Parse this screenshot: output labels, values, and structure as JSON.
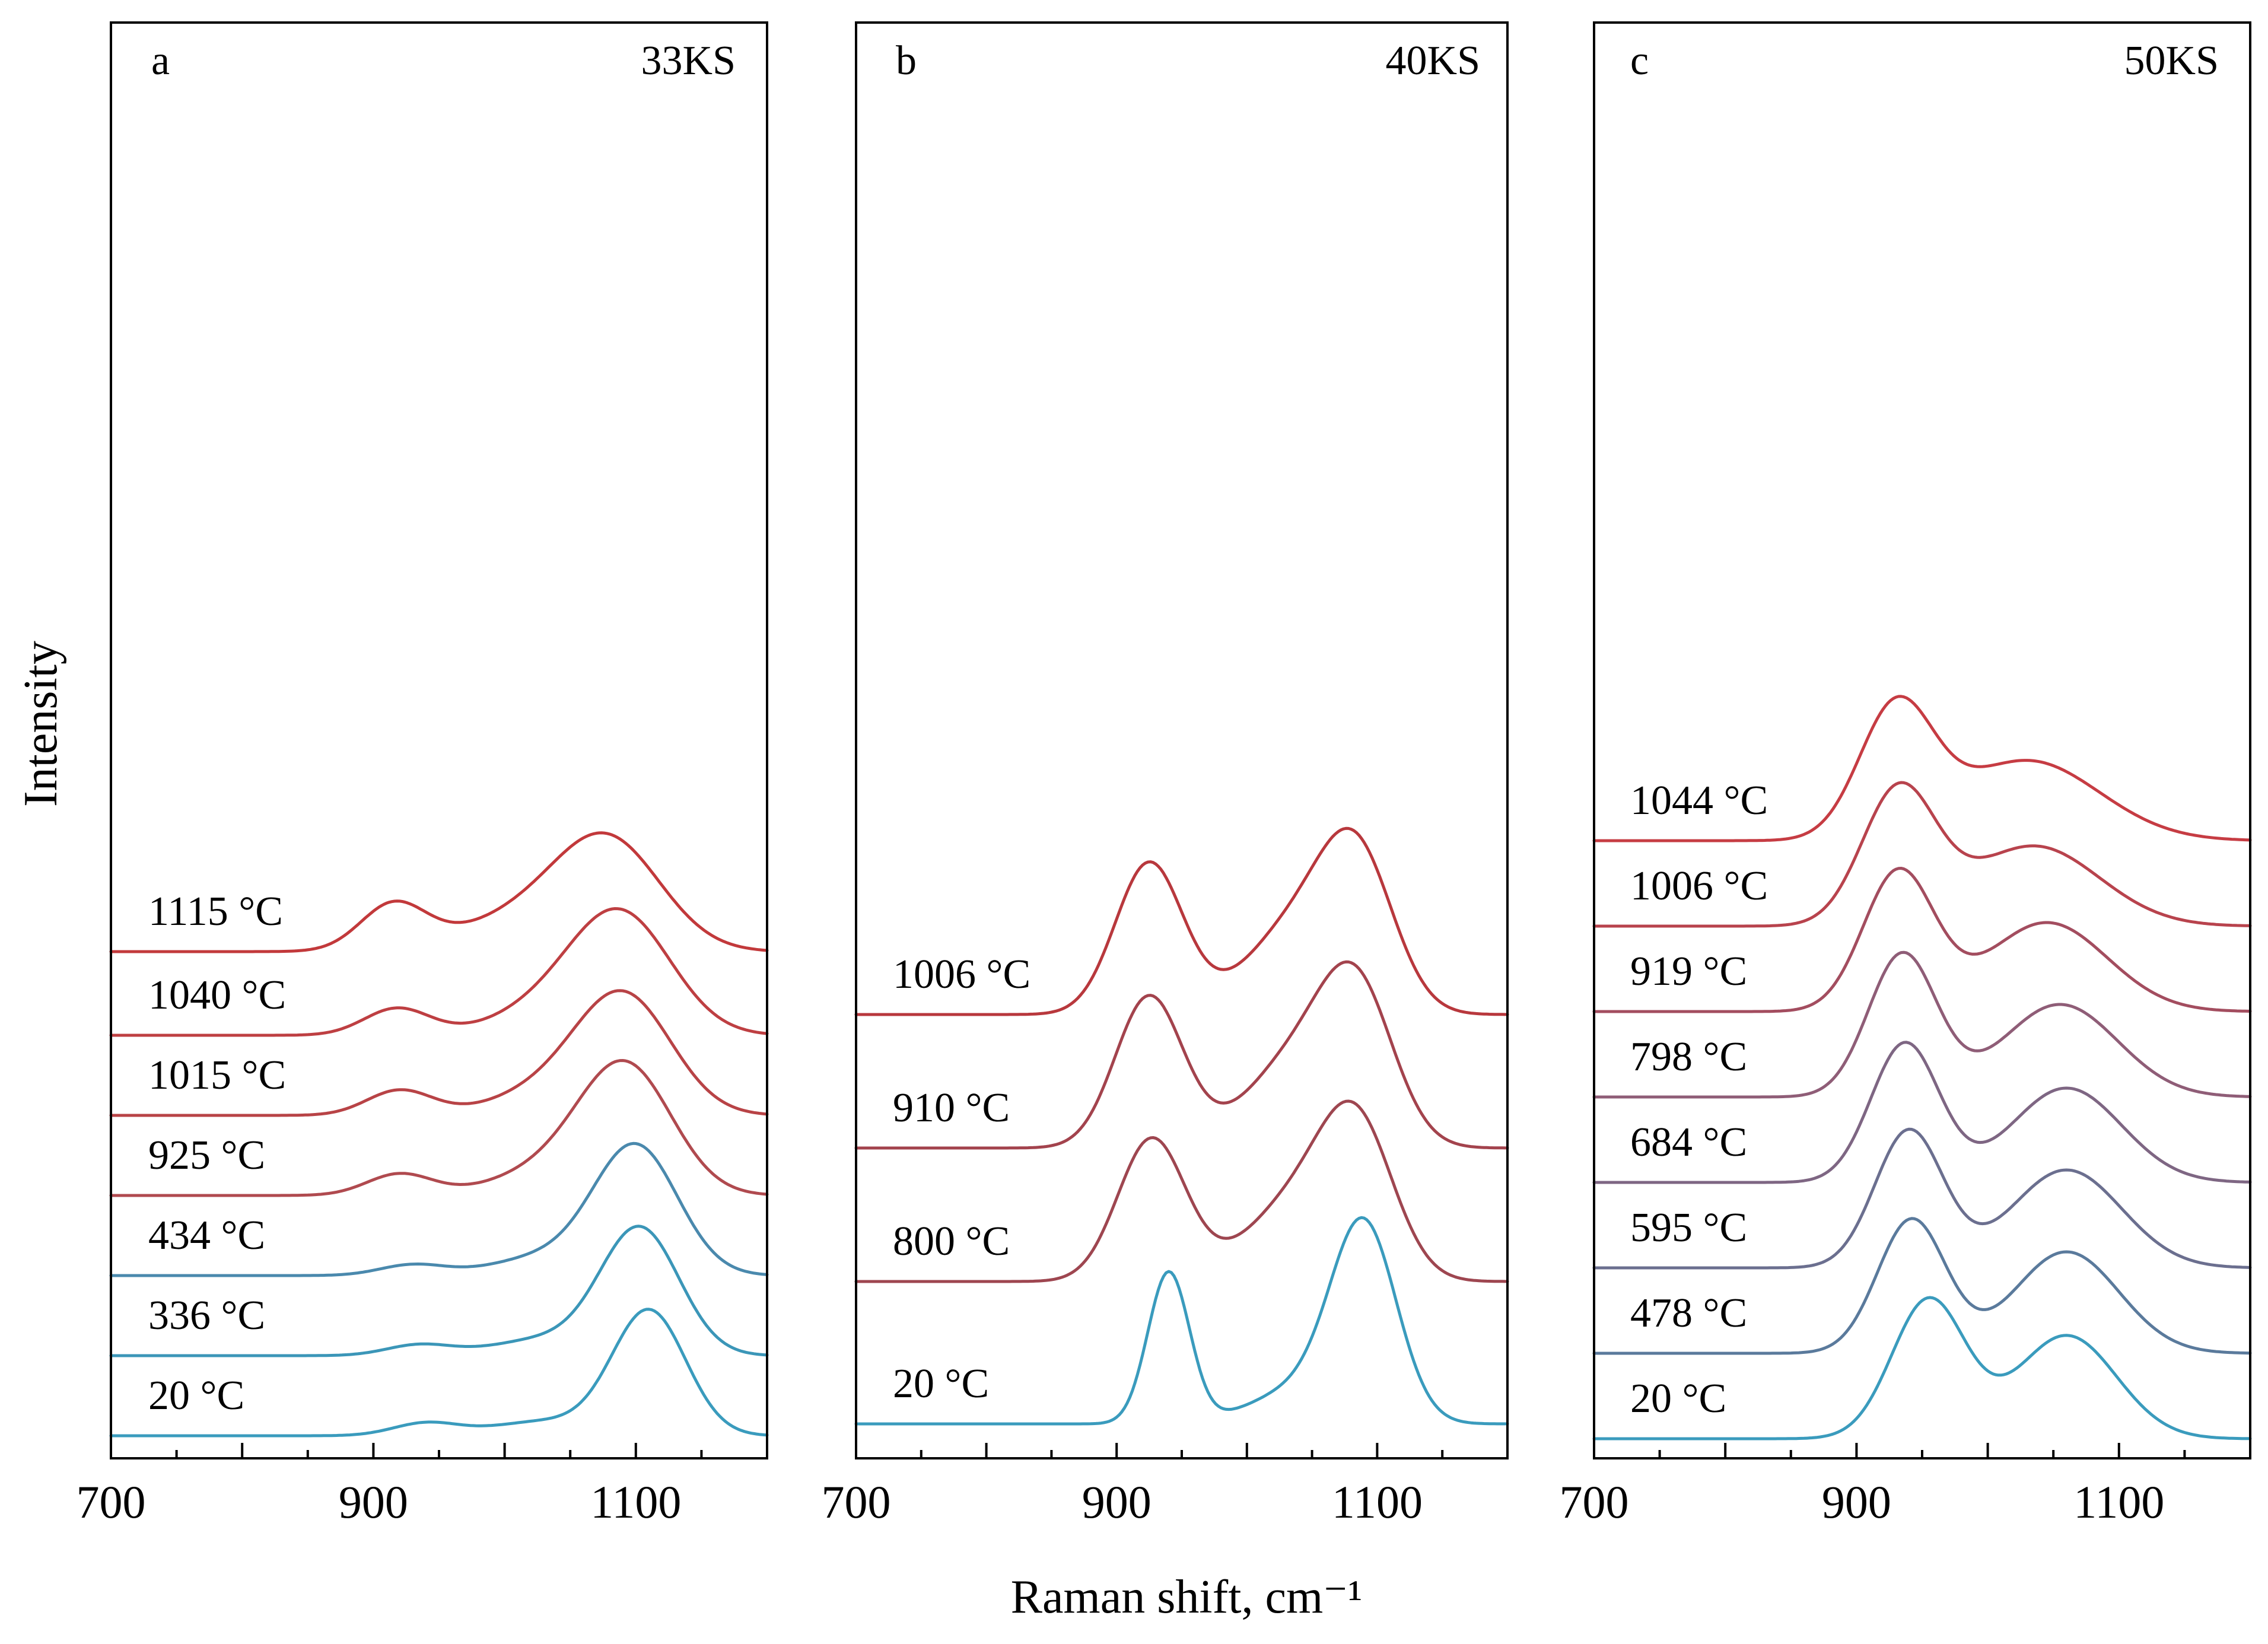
{
  "chart_data": {
    "type": "line",
    "xlabel": "Raman shift, cm⁻¹",
    "ylabel": "Intensity",
    "xlim": [
      700,
      1200
    ],
    "xticks": [
      700,
      900,
      1100
    ],
    "panels": [
      {
        "letter": "a",
        "sample": "33KS",
        "series": [
          {
            "label": "20 °C",
            "offset": 0,
            "color": "#3a9bbd",
            "peaks": [
              {
                "center": 940,
                "height": 0.07,
                "width": 25
              },
              {
                "center": 1030,
                "height": 0.08,
                "width": 40
              },
              {
                "center": 1110,
                "height": 0.7,
                "width": 28
              }
            ]
          },
          {
            "label": "336 °C",
            "offset": 0.45,
            "color": "#3b96b8",
            "peaks": [
              {
                "center": 935,
                "height": 0.06,
                "width": 25
              },
              {
                "center": 1030,
                "height": 0.09,
                "width": 40
              },
              {
                "center": 1103,
                "height": 0.71,
                "width": 30
              }
            ]
          },
          {
            "label": "434 °C",
            "offset": 0.9,
            "color": "#4a89ad",
            "peaks": [
              {
                "center": 930,
                "height": 0.06,
                "width": 25
              },
              {
                "center": 1030,
                "height": 0.1,
                "width": 40
              },
              {
                "center": 1100,
                "height": 0.72,
                "width": 32
              }
            ]
          },
          {
            "label": "925 °C",
            "offset": 1.35,
            "color": "#b04a4f",
            "peaks": [
              {
                "center": 920,
                "height": 0.12,
                "width": 25
              },
              {
                "center": 1040,
                "height": 0.15,
                "width": 45
              },
              {
                "center": 1093,
                "height": 0.68,
                "width": 35
              }
            ]
          },
          {
            "label": "1015 °C",
            "offset": 1.8,
            "color": "#b84346",
            "peaks": [
              {
                "center": 920,
                "height": 0.14,
                "width": 25
              },
              {
                "center": 1040,
                "height": 0.15,
                "width": 45
              },
              {
                "center": 1092,
                "height": 0.62,
                "width": 36
              }
            ]
          },
          {
            "label": "1040 °C",
            "offset": 2.25,
            "color": "#be3f42",
            "peaks": [
              {
                "center": 918,
                "height": 0.15,
                "width": 25
              },
              {
                "center": 1040,
                "height": 0.16,
                "width": 45
              },
              {
                "center": 1090,
                "height": 0.62,
                "width": 38
              }
            ]
          },
          {
            "label": "1115 °C",
            "offset": 2.72,
            "color": "#c2393b",
            "peaks": [
              {
                "center": 915,
                "height": 0.25,
                "width": 25
              },
              {
                "center": 1020,
                "height": 0.2,
                "width": 55
              },
              {
                "center": 1080,
                "height": 0.55,
                "width": 40
              }
            ]
          }
        ]
      },
      {
        "letter": "b",
        "sample": "40KS",
        "series": [
          {
            "label": "20 °C",
            "offset": 0,
            "color": "#3a9bbd",
            "peaks": [
              {
                "center": 940,
                "height": 0.85,
                "width": 16
              },
              {
                "center": 1045,
                "height": 0.2,
                "width": 40
              },
              {
                "center": 1090,
                "height": 1.05,
                "width": 25
              }
            ]
          },
          {
            "label": "800 °C",
            "offset": 0.8,
            "color": "#9e4650",
            "peaks": [
              {
                "center": 927,
                "height": 0.8,
                "width": 26
              },
              {
                "center": 1040,
                "height": 0.45,
                "width": 40
              },
              {
                "center": 1085,
                "height": 0.75,
                "width": 28
              }
            ]
          },
          {
            "label": "910 °C",
            "offset": 1.55,
            "color": "#a3434d",
            "peaks": [
              {
                "center": 925,
                "height": 0.85,
                "width": 26
              },
              {
                "center": 1040,
                "height": 0.5,
                "width": 40
              },
              {
                "center": 1085,
                "height": 0.75,
                "width": 28
              }
            ]
          },
          {
            "label": "1006 °C",
            "offset": 2.3,
            "color": "#b8383d",
            "peaks": [
              {
                "center": 925,
                "height": 0.85,
                "width": 26
              },
              {
                "center": 1040,
                "height": 0.5,
                "width": 40
              },
              {
                "center": 1085,
                "height": 0.75,
                "width": 28
              }
            ]
          }
        ]
      },
      {
        "letter": "c",
        "sample": "50KS",
        "series": [
          {
            "label": "20 °C",
            "offset": 0,
            "color": "#3a9bbd",
            "peaks": [
              {
                "center": 955,
                "height": 0.78,
                "width": 28
              },
              {
                "center": 1060,
                "height": 0.58,
                "width": 38
              }
            ]
          },
          {
            "label": "478 °C",
            "offset": 0.48,
            "color": "#5a7a9c",
            "peaks": [
              {
                "center": 942,
                "height": 0.75,
                "width": 26
              },
              {
                "center": 1060,
                "height": 0.57,
                "width": 40
              }
            ]
          },
          {
            "label": "595 °C",
            "offset": 0.96,
            "color": "#6b6f8f",
            "peaks": [
              {
                "center": 940,
                "height": 0.77,
                "width": 26
              },
              {
                "center": 1060,
                "height": 0.55,
                "width": 42
              }
            ]
          },
          {
            "label": "684 °C",
            "offset": 1.44,
            "color": "#7e6683",
            "peaks": [
              {
                "center": 937,
                "height": 0.78,
                "width": 26
              },
              {
                "center": 1060,
                "height": 0.53,
                "width": 42
              }
            ]
          },
          {
            "label": "798 °C",
            "offset": 1.92,
            "color": "#8f5d77",
            "peaks": [
              {
                "center": 935,
                "height": 0.8,
                "width": 26
              },
              {
                "center": 1055,
                "height": 0.52,
                "width": 44
              }
            ]
          },
          {
            "label": "919 °C",
            "offset": 2.4,
            "color": "#a34d5f",
            "peaks": [
              {
                "center": 932,
                "height": 0.78,
                "width": 27
              },
              {
                "center": 1045,
                "height": 0.5,
                "width": 46
              }
            ]
          },
          {
            "label": "1006 °C",
            "offset": 2.88,
            "color": "#b8434d",
            "peaks": [
              {
                "center": 932,
                "height": 0.75,
                "width": 28
              },
              {
                "center": 1035,
                "height": 0.45,
                "width": 50
              }
            ]
          },
          {
            "label": "1044 °C",
            "offset": 3.36,
            "color": "#c63c43",
            "peaks": [
              {
                "center": 930,
                "height": 0.72,
                "width": 28
              },
              {
                "center": 1030,
                "height": 0.45,
                "width": 55
              }
            ]
          }
        ]
      }
    ]
  }
}
